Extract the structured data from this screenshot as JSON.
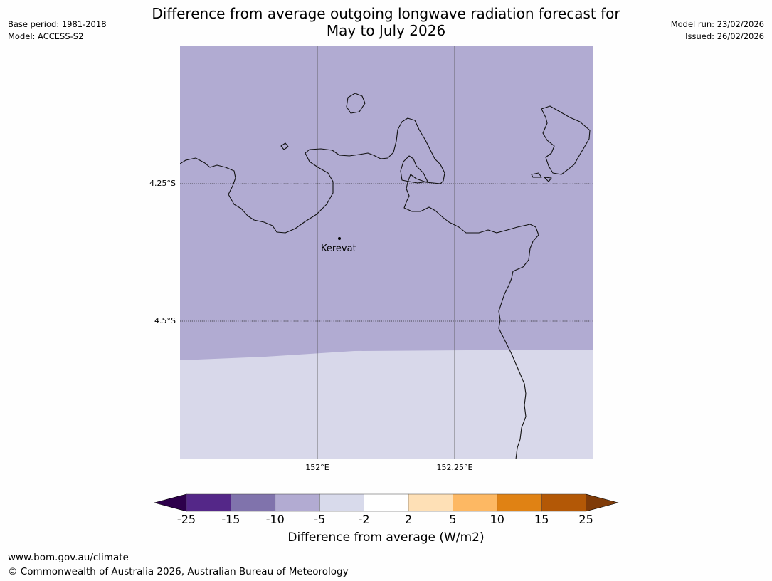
{
  "title_line1": "Difference from average outgoing longwave radiation forecast for",
  "title_line2": "May to July 2026",
  "base_period": "Base period: 1981-2018",
  "model": "Model: ACCESS-S2",
  "model_run": "Model run: 23/02/2026",
  "issued": "Issued: 26/02/2026",
  "map": {
    "place_label": "Kerevat",
    "lat_labels": [
      "4.25°S",
      "4.5°S"
    ],
    "lon_labels": [
      "152°E",
      "152.25°E"
    ],
    "fill_colors": {
      "upper": "#b1abd2",
      "lower": "#d8d8ea"
    },
    "upper_region_category": "-10 to -5",
    "lower_region_category": "-5 to -2"
  },
  "colorbar": {
    "ticks": [
      "-25",
      "-15",
      "-10",
      "-5",
      "-2",
      "2",
      "5",
      "10",
      "15",
      "25"
    ],
    "colors": [
      "#2d004b",
      "#542788",
      "#8073ac",
      "#b2abd2",
      "#d8daeb",
      "#ffffff",
      "#fee0b6",
      "#fdb863",
      "#e08214",
      "#b35806",
      "#7f3b08"
    ],
    "label": "Difference from average (W/m2)"
  },
  "footer_url": "www.bom.gov.au/climate",
  "footer_copyright": "© Commonwealth of Australia 2026, Australian Bureau of Meteorology"
}
